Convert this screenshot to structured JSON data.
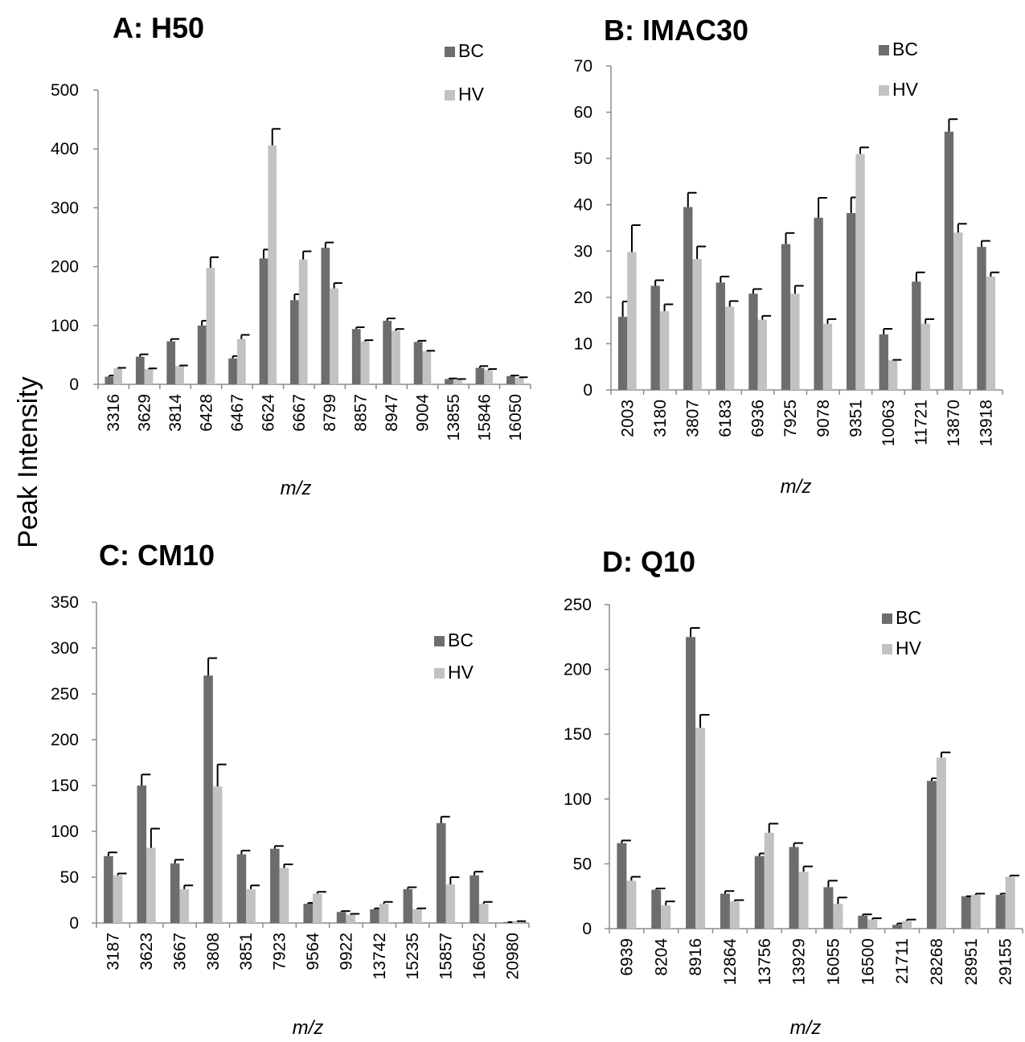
{
  "figure": {
    "ylabel": "Peak Intensity"
  },
  "chart_data": [
    {
      "type": "bar",
      "title": "A: H50",
      "xlabel": "m/z",
      "ylabel": "Peak Intensity",
      "ylim": [
        0,
        500
      ],
      "yticks": [
        0,
        100,
        200,
        300,
        400,
        500
      ],
      "grid": false,
      "legend_position": "top-right",
      "categories": [
        "3316",
        "3629",
        "3814",
        "6428",
        "6467",
        "6624",
        "6667",
        "8799",
        "8857",
        "8947",
        "9004",
        "13855",
        "15846",
        "16050"
      ],
      "series": [
        {
          "name": "BC",
          "color": "#6d6d6d",
          "values": [
            13,
            47,
            73,
            100,
            44,
            214,
            143,
            232,
            94,
            108,
            72,
            9,
            28,
            14
          ],
          "errors": [
            2,
            4,
            4,
            8,
            4,
            15,
            10,
            9,
            3,
            4,
            2,
            1,
            3,
            1
          ]
        },
        {
          "name": "HV",
          "color": "#c2c2c2",
          "values": [
            27,
            26,
            31,
            198,
            77,
            406,
            212,
            163,
            73,
            91,
            56,
            8,
            24,
            11
          ],
          "errors": [
            1,
            1,
            1,
            18,
            7,
            28,
            14,
            9,
            2,
            3,
            1,
            1,
            2,
            1
          ]
        }
      ]
    },
    {
      "type": "bar",
      "title": "B: IMAC30",
      "xlabel": "m/z",
      "ylabel": "Peak Intensity",
      "ylim": [
        0,
        70
      ],
      "yticks": [
        0,
        10,
        20,
        30,
        40,
        50,
        60,
        70
      ],
      "grid": false,
      "legend_position": "top-right",
      "categories": [
        "2003",
        "3180",
        "3807",
        "6183",
        "6936",
        "7925",
        "9078",
        "9351",
        "10063",
        "11721",
        "13870",
        "13918"
      ],
      "series": [
        {
          "name": "BC",
          "color": "#6d6d6d",
          "values": [
            15.8,
            22.5,
            39.5,
            23.2,
            20.8,
            31.5,
            37.2,
            38.2,
            12.0,
            23.4,
            55.8,
            30.9
          ],
          "errors": [
            3.3,
            1.2,
            3.1,
            1.3,
            1.0,
            2.4,
            4.3,
            3.4,
            1.2,
            2.0,
            2.7,
            1.3
          ]
        },
        {
          "name": "HV",
          "color": "#c2c2c2",
          "values": [
            29.8,
            17.0,
            28.3,
            18.0,
            15.2,
            20.8,
            14.3,
            51.0,
            6.4,
            14.3,
            34.0,
            24.5
          ],
          "errors": [
            5.8,
            1.5,
            2.7,
            1.2,
            0.8,
            1.7,
            1.0,
            1.4,
            0.1,
            1.0,
            1.9,
            0.9
          ]
        }
      ]
    },
    {
      "type": "bar",
      "title": "C: CM10",
      "xlabel": "m/z",
      "ylabel": "Peak Intensity",
      "ylim": [
        0,
        350
      ],
      "yticks": [
        0,
        50,
        100,
        150,
        200,
        250,
        300,
        350
      ],
      "grid": false,
      "legend_position": "right",
      "categories": [
        "3187",
        "3623",
        "3667",
        "3808",
        "3851",
        "7923",
        "9564",
        "9922",
        "13742",
        "15235",
        "15857",
        "16052",
        "20980"
      ],
      "series": [
        {
          "name": "BC",
          "color": "#6d6d6d",
          "values": [
            73,
            150,
            65,
            270,
            75,
            81,
            21,
            12,
            15,
            37,
            109,
            52,
            1
          ],
          "errors": [
            4,
            12,
            4,
            19,
            4,
            3,
            1,
            1,
            1,
            2,
            7,
            4,
            0
          ]
        },
        {
          "name": "HV",
          "color": "#c2c2c2",
          "values": [
            52,
            82,
            37,
            149,
            37,
            60,
            32,
            9,
            21,
            15,
            42,
            21,
            2
          ],
          "errors": [
            2,
            21,
            4,
            24,
            4,
            4,
            2,
            1,
            2,
            1,
            8,
            2,
            0
          ]
        }
      ]
    },
    {
      "type": "bar",
      "title": "D: Q10",
      "xlabel": "m/z",
      "ylabel": "Peak Intensity",
      "ylim": [
        0,
        250
      ],
      "yticks": [
        0,
        50,
        100,
        150,
        200,
        250
      ],
      "grid": false,
      "legend_position": "top-right",
      "categories": [
        "6939",
        "8204",
        "8916",
        "12864",
        "13756",
        "13929",
        "16055",
        "16500",
        "21711",
        "28268",
        "28951",
        "29155"
      ],
      "series": [
        {
          "name": "BC",
          "color": "#6d6d6d",
          "values": [
            66,
            30,
            225,
            27,
            56,
            63,
            32,
            10,
            3,
            114,
            25,
            26
          ],
          "errors": [
            2,
            1,
            7,
            2,
            2,
            3,
            5,
            1,
            1,
            2,
            0,
            1
          ]
        },
        {
          "name": "HV",
          "color": "#c2c2c2",
          "values": [
            37,
            18,
            155,
            21,
            74,
            44,
            19,
            7,
            6,
            132,
            26,
            40
          ],
          "errors": [
            3,
            3,
            10,
            1,
            7,
            4,
            5,
            1,
            1,
            4,
            1,
            1
          ]
        }
      ]
    }
  ]
}
